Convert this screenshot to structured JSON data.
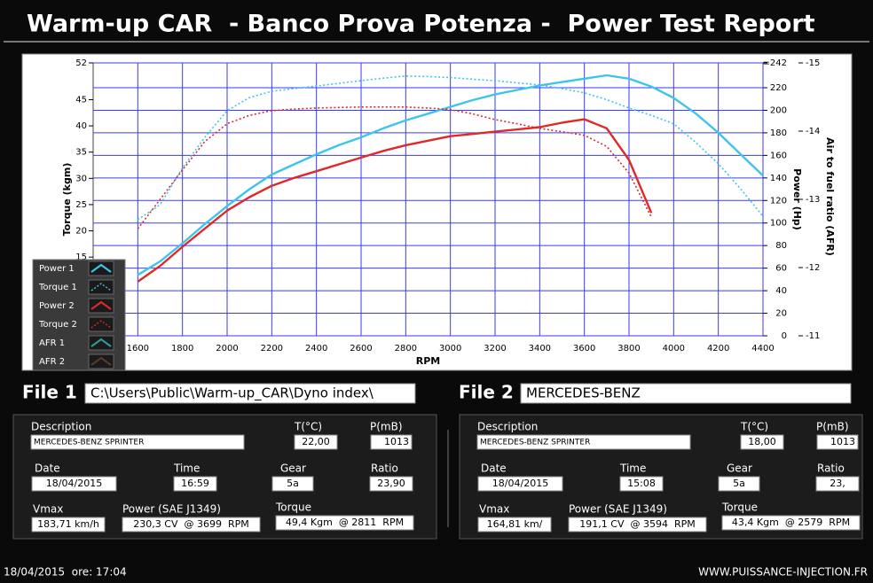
{
  "header": {
    "title": "Warm-up CAR  - Banco Prova Potenza -  Power Test Report"
  },
  "chart_data": {
    "type": "line",
    "x_label": "RPM",
    "y_label": "Torque (kgm)",
    "y2_label": "Power (Hp)",
    "y3_label": "Air to fuel ratio (AFR)",
    "x": [
      1600,
      1700,
      1800,
      1900,
      2000,
      2100,
      2200,
      2300,
      2400,
      2500,
      2600,
      2700,
      2800,
      2900,
      3000,
      3100,
      3200,
      3300,
      3400,
      3500,
      3600,
      3700,
      3800,
      3900,
      4000,
      4100,
      4200,
      4300,
      4400
    ],
    "xlim": [
      1400,
      4400
    ],
    "xticks": [
      1600,
      1800,
      2000,
      2200,
      2400,
      2600,
      2800,
      3000,
      3200,
      3400,
      3600,
      3800,
      4000,
      4200,
      4400
    ],
    "ylim": [
      0,
      52
    ],
    "yticks": [
      15,
      20,
      25,
      30,
      35,
      40,
      45,
      52
    ],
    "y2lim": [
      0,
      242
    ],
    "y2ticks": [
      0,
      20,
      40,
      60,
      80,
      100,
      120,
      140,
      160,
      180,
      200,
      220,
      {
        "value": 242,
        "label": "=242"
      }
    ],
    "y3lim": [
      -11,
      -15
    ],
    "y3ticks": [
      -15,
      -14,
      -13,
      -12,
      -11
    ],
    "grid": true,
    "legend": "bottom-left",
    "series": [
      {
        "name": "Power 1",
        "color": "#3cc4ee",
        "axis": "y2",
        "style": "solid",
        "values": [
          54,
          66,
          82,
          99,
          115,
          130,
          143,
          152,
          161,
          169,
          176,
          184,
          191,
          197,
          203,
          209,
          214,
          218,
          222,
          225,
          228,
          231,
          228,
          221,
          211,
          197,
          180,
          161,
          142
        ]
      },
      {
        "name": "Torque 1",
        "color": "#3cc4ee",
        "axis": "y",
        "style": "dotted",
        "values": [
          22.1,
          25,
          32,
          37.8,
          42.9,
          45.4,
          46.6,
          47.1,
          47.6,
          48.1,
          48.6,
          49.1,
          49.5,
          49.4,
          49.2,
          48.9,
          48.6,
          48.2,
          47.8,
          47.1,
          46.3,
          45,
          43.4,
          42,
          40.4,
          36.8,
          32.8,
          28,
          22.8
        ]
      },
      {
        "name": "Power 2",
        "color": "#e02828",
        "axis": "y2",
        "style": "solid",
        "values": [
          48,
          62,
          79,
          95,
          111,
          123,
          133,
          140,
          146,
          152,
          158,
          164,
          169,
          173,
          177,
          179,
          181,
          183,
          185,
          189,
          192,
          184,
          156,
          109,
          null,
          null,
          null,
          null,
          null
        ]
      },
      {
        "name": "Torque 2",
        "color": "#e02828",
        "axis": "y",
        "style": "dotted",
        "values": [
          20.4,
          26,
          31.6,
          37,
          40.4,
          42,
          42.9,
          43.2,
          43.4,
          43.5,
          43.6,
          43.6,
          43.6,
          43.4,
          43.1,
          42.3,
          41.2,
          40.4,
          39.5,
          38.9,
          38.2,
          36.1,
          31,
          22.6,
          null,
          null,
          null,
          null,
          null
        ]
      },
      {
        "name": "AFR 1",
        "color": "#2a9a9a",
        "axis": "y3",
        "style": "solid"
      },
      {
        "name": "AFR 2",
        "color": "#5a3a2a",
        "axis": "y3",
        "style": "solid"
      }
    ]
  },
  "file1": {
    "label": "File 1",
    "path": "C:\\Users\\Public\\Warm-up_CAR\\Dyno index\\"
  },
  "file2": {
    "label": "File 2",
    "path": "MERCEDES-BENZ"
  },
  "panels": [
    {
      "fields": [
        {
          "label": "Description",
          "value": "MERCEDES-BENZ SPRINTER"
        },
        {
          "label": "T(°C)",
          "value": "22,00"
        },
        {
          "label": "P(mB)",
          "value": "1013"
        },
        {
          "label": "Date",
          "value": "18/04/2015"
        },
        {
          "label": "Time",
          "value": "16:59"
        },
        {
          "label": "Gear",
          "value": "5a"
        },
        {
          "label": "Ratio",
          "value": "23,90"
        },
        {
          "label": "Vmax",
          "value": "183,71 km/h"
        },
        {
          "label": "Power (SAE J1349)",
          "value": "230,3 CV  @ 3699  RPM"
        },
        {
          "label": "Torque",
          "value": "49,4 Kgm  @ 2811  RPM"
        }
      ]
    },
    {
      "fields": [
        {
          "label": "Description",
          "value": "MERCEDES-BENZ SPRINTER"
        },
        {
          "label": "T(°C)",
          "value": "18,00"
        },
        {
          "label": "P(mB)",
          "value": "1013"
        },
        {
          "label": "Date",
          "value": "18/04/2015"
        },
        {
          "label": "Time",
          "value": "15:08"
        },
        {
          "label": "Gear",
          "value": "5a"
        },
        {
          "label": "Ratio",
          "value": "23,"
        },
        {
          "label": "Vmax",
          "value": "164,81 km/"
        },
        {
          "label": "Power (SAE J1349)",
          "value": "191,1 CV  @ 3594  RPM"
        },
        {
          "label": "Torque",
          "value": "43,4 Kgm  @ 2579  RPM"
        }
      ]
    }
  ],
  "footer": {
    "timestamp": "18/04/2015  ore: 17:04",
    "website": "WWW.PUISSANCE-INJECTION.FR"
  }
}
